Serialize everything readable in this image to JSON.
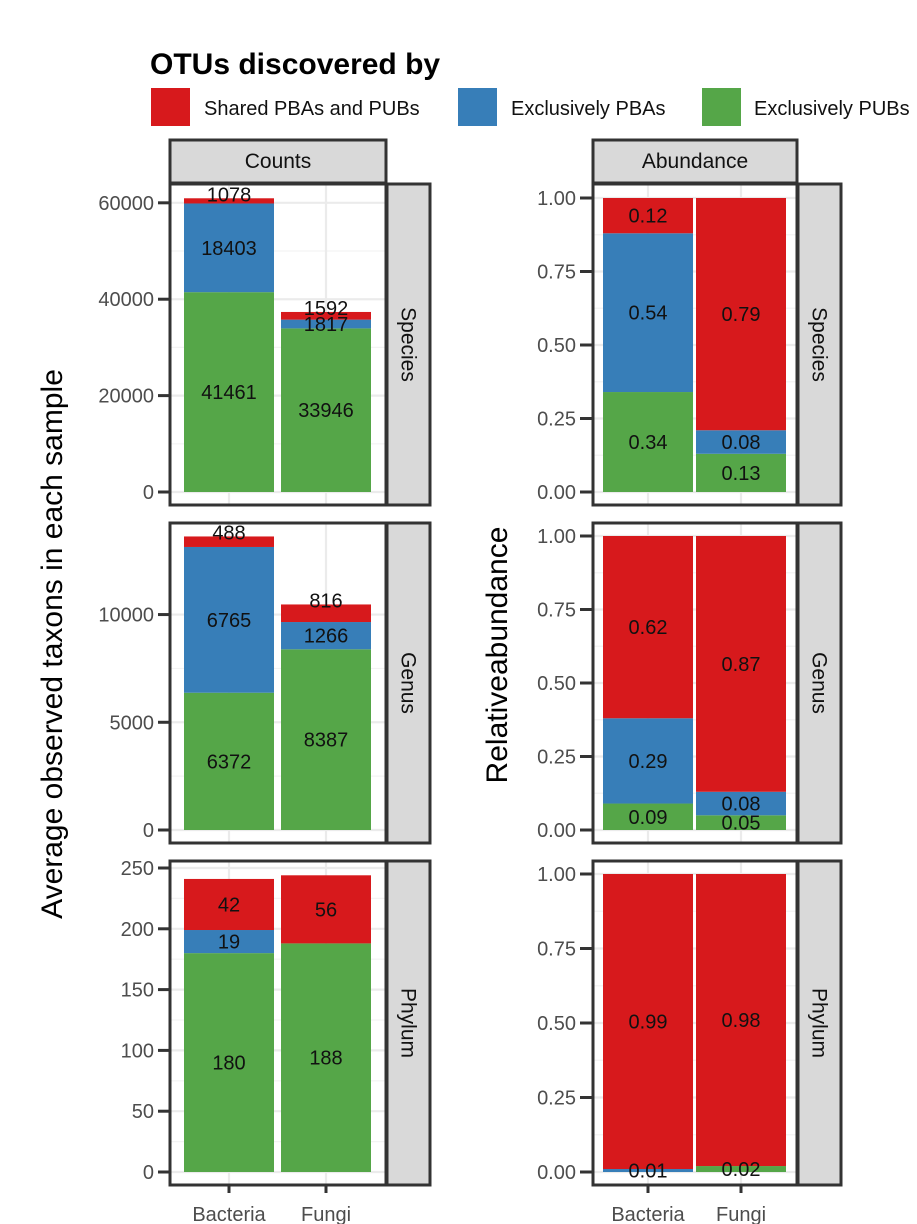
{
  "legend": {
    "title": "OTUs discovered by",
    "items": [
      {
        "label": "Shared PBAs and PUBs",
        "color": "#d7191c"
      },
      {
        "label": "Exclusively PBAs",
        "color": "#377eb8"
      },
      {
        "label": "Exclusively PUBs",
        "color": "#55a648"
      }
    ]
  },
  "chart_data": [
    {
      "type": "bar",
      "stacked": true,
      "column_strip": "Counts",
      "ylabel": "Average observed taxons in each sample",
      "categories": [
        "Bacteria",
        "Fungi"
      ],
      "panels": [
        {
          "row_strip": "Species",
          "ylim": [
            0,
            61000
          ],
          "ticks": [
            0,
            20000,
            40000,
            60000
          ],
          "series": [
            {
              "name": "Exclusively PUBs",
              "values": [
                41461,
                33946
              ],
              "labels": [
                "41461",
                "33946"
              ]
            },
            {
              "name": "Exclusively PBAs",
              "values": [
                18403,
                1817
              ],
              "labels": [
                "18403",
                "1817"
              ]
            },
            {
              "name": "Shared PBAs and PUBs",
              "values": [
                1078,
                1592
              ],
              "labels": [
                "1078",
                "1592"
              ]
            }
          ]
        },
        {
          "row_strip": "Genus",
          "ylim": [
            0,
            13600
          ],
          "ticks": [
            0,
            5000,
            10000
          ],
          "series": [
            {
              "name": "Exclusively PUBs",
              "values": [
                6372,
                8387
              ],
              "labels": [
                "6372",
                "8387"
              ]
            },
            {
              "name": "Exclusively PBAs",
              "values": [
                6765,
                1266
              ],
              "labels": [
                "6765",
                "1266"
              ]
            },
            {
              "name": "Shared PBAs and PUBs",
              "values": [
                488,
                816
              ],
              "labels": [
                "488",
                "816"
              ]
            }
          ]
        },
        {
          "row_strip": "Phylum",
          "ylim": [
            0,
            250
          ],
          "ticks": [
            0,
            50,
            100,
            150,
            200,
            250
          ],
          "series": [
            {
              "name": "Exclusively PUBs",
              "values": [
                180,
                188
              ],
              "labels": [
                "180",
                "188"
              ]
            },
            {
              "name": "Exclusively PBAs",
              "values": [
                19,
                0
              ],
              "labels": [
                "19",
                ""
              ]
            },
            {
              "name": "Shared PBAs and PUBs",
              "values": [
                42,
                56
              ],
              "labels": [
                "42",
                "56"
              ]
            }
          ]
        }
      ]
    },
    {
      "type": "bar",
      "stacked": true,
      "column_strip": "Abundance",
      "ylabel": "Relativeabundance",
      "categories": [
        "Bacteria",
        "Fungi"
      ],
      "panels": [
        {
          "row_strip": "Species",
          "ylim": [
            0,
            1.0
          ],
          "ticks": [
            "0.00",
            "0.25",
            "0.50",
            "0.75",
            "1.00"
          ],
          "series": [
            {
              "name": "Exclusively PUBs",
              "values": [
                0.34,
                0.13
              ],
              "labels": [
                "0.34",
                "0.13"
              ]
            },
            {
              "name": "Exclusively PBAs",
              "values": [
                0.54,
                0.08
              ],
              "labels": [
                "0.54",
                "0.08"
              ]
            },
            {
              "name": "Shared PBAs and PUBs",
              "values": [
                0.12,
                0.79
              ],
              "labels": [
                "0.12",
                "0.79"
              ]
            }
          ]
        },
        {
          "row_strip": "Genus",
          "ylim": [
            0,
            1.0
          ],
          "ticks": [
            "0.00",
            "0.25",
            "0.50",
            "0.75",
            "1.00"
          ],
          "series": [
            {
              "name": "Exclusively PUBs",
              "values": [
                0.09,
                0.05
              ],
              "labels": [
                "0.09",
                "0.05"
              ]
            },
            {
              "name": "Exclusively PBAs",
              "values": [
                0.29,
                0.08
              ],
              "labels": [
                "0.29",
                "0.08"
              ]
            },
            {
              "name": "Shared PBAs and PUBs",
              "values": [
                0.62,
                0.87
              ],
              "labels": [
                "0.62",
                "0.87"
              ]
            }
          ]
        },
        {
          "row_strip": "Phylum",
          "ylim": [
            0,
            1.0
          ],
          "ticks": [
            "0.00",
            "0.25",
            "0.50",
            "0.75",
            "1.00"
          ],
          "series": [
            {
              "name": "Exclusively PUBs",
              "values": [
                0.0,
                0.02
              ],
              "labels": [
                "",
                "0.02"
              ]
            },
            {
              "name": "Exclusively PBAs",
              "values": [
                0.01,
                0.0
              ],
              "labels": [
                "0.01",
                ""
              ]
            },
            {
              "name": "Shared PBAs and PUBs",
              "values": [
                0.99,
                0.98
              ],
              "labels": [
                "0.99",
                "0.98"
              ]
            }
          ]
        }
      ]
    }
  ]
}
